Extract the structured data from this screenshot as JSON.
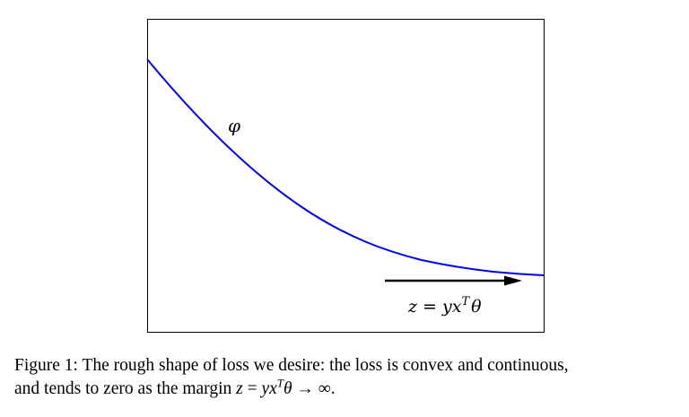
{
  "figure": {
    "curve_label": "φ",
    "arrow_label_parts": {
      "z": "z",
      "eq": " = ",
      "yx": "yx",
      "T": "T",
      "theta": "θ"
    },
    "colors": {
      "curve": "#0000ee",
      "arrow": "#000000",
      "frame": "#000000"
    }
  },
  "caption": {
    "line1": "Figure 1:  The rough shape of loss we desire:  the loss is convex and continuous,",
    "line2_prefix": "and tends to zero as the margin ",
    "z": "z",
    "eq": " = ",
    "yx": "yx",
    "T": "T",
    "theta": "θ",
    "arrow": " → ∞."
  }
}
